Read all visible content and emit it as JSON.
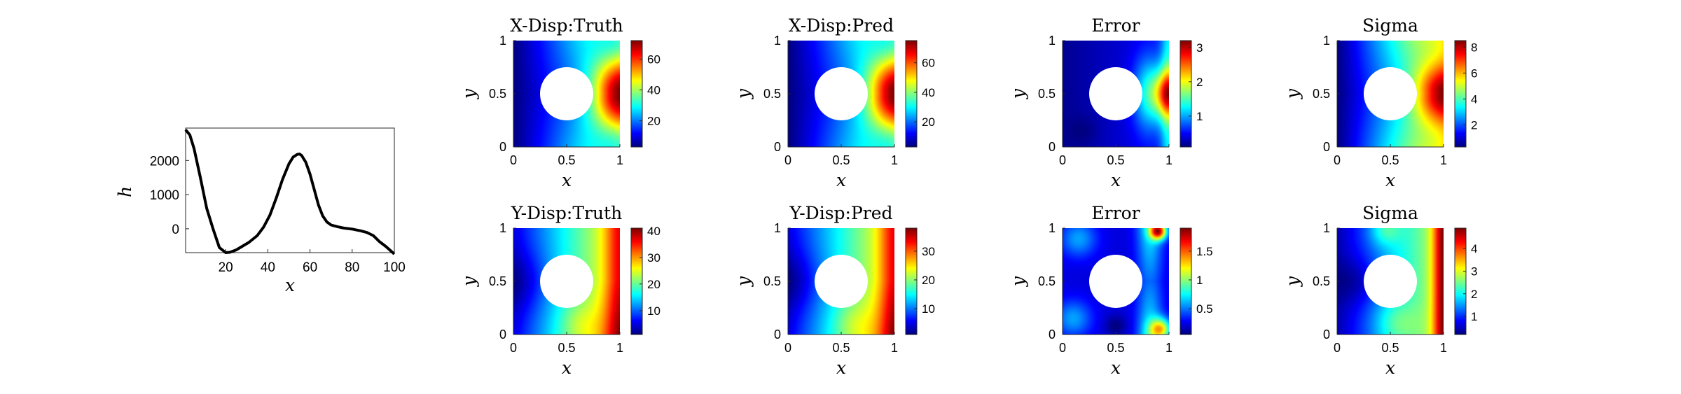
{
  "chart_data": [
    {
      "id": "h-profile",
      "type": "line",
      "title": "",
      "xlabel": "x",
      "ylabel": "h",
      "xlim": [
        1,
        100
      ],
      "ylim": [
        -700,
        2950
      ],
      "xticks": [
        "20",
        "40",
        "60",
        "80",
        "100"
      ],
      "yticks": [
        "0",
        "1000",
        "2000"
      ],
      "series": [
        {
          "x": [
            1,
            3,
            5,
            8,
            11,
            14,
            17,
            20,
            22,
            25,
            28,
            31,
            35,
            38,
            41,
            44,
            47,
            50,
            52,
            54,
            55,
            56,
            58,
            60,
            62,
            64,
            66,
            68,
            70,
            73,
            76,
            80,
            84,
            87,
            90,
            93,
            96,
            100
          ],
          "y": [
            2900,
            2750,
            2350,
            1500,
            600,
            0,
            -550,
            -700,
            -690,
            -620,
            -510,
            -400,
            -200,
            50,
            400,
            900,
            1450,
            1900,
            2100,
            2180,
            2190,
            2150,
            1950,
            1600,
            1150,
            700,
            380,
            200,
            110,
            60,
            20,
            -10,
            -60,
            -110,
            -200,
            -380,
            -520,
            -740
          ]
        }
      ]
    },
    {
      "id": "x-disp-truth",
      "type": "heatmap",
      "title": "X-Disp:Truth",
      "xlabel": "x",
      "ylabel": "y",
      "xticks": [
        "0",
        "0.5",
        "1"
      ],
      "yticks": [
        "0",
        "0.5",
        "1"
      ],
      "colorbar_ticks": [
        "20",
        "40",
        "60"
      ],
      "colorbar_range": [
        3,
        72
      ],
      "colormap": "jet",
      "pattern": "x-disp"
    },
    {
      "id": "x-disp-pred",
      "type": "heatmap",
      "title": "X-Disp:Pred",
      "xlabel": "x",
      "ylabel": "y",
      "xticks": [
        "0",
        "0.5",
        "1"
      ],
      "yticks": [
        "0",
        "0.5",
        "1"
      ],
      "colorbar_ticks": [
        "20",
        "40",
        "60"
      ],
      "colorbar_range": [
        3,
        75
      ],
      "colormap": "jet",
      "pattern": "x-disp"
    },
    {
      "id": "x-error",
      "type": "heatmap",
      "title": "Error",
      "xlabel": "x",
      "ylabel": "y",
      "xticks": [
        "0",
        "0.5",
        "1"
      ],
      "yticks": [
        "0",
        "0.5",
        "1"
      ],
      "colorbar_ticks": [
        "1",
        "2",
        "3"
      ],
      "colorbar_range": [
        0.1,
        3.2
      ],
      "colormap": "jet",
      "pattern": "x-error"
    },
    {
      "id": "x-sigma",
      "type": "heatmap",
      "title": "Sigma",
      "xlabel": "x",
      "ylabel": "y",
      "xticks": [
        "0",
        "0.5",
        "1"
      ],
      "yticks": [
        "0",
        "0.5",
        "1"
      ],
      "colorbar_ticks": [
        "2",
        "4",
        "6",
        "8"
      ],
      "colorbar_range": [
        0.3,
        8.5
      ],
      "colormap": "jet",
      "pattern": "x-sigma"
    },
    {
      "id": "y-disp-truth",
      "type": "heatmap",
      "title": "Y-Disp:Truth",
      "xlabel": "x",
      "ylabel": "y",
      "xticks": [
        "0",
        "0.5",
        "1"
      ],
      "yticks": [
        "0",
        "0.5",
        "1"
      ],
      "colorbar_ticks": [
        "10",
        "20",
        "30",
        "40"
      ],
      "colorbar_range": [
        1,
        41
      ],
      "colormap": "jet",
      "pattern": "y-disp"
    },
    {
      "id": "y-disp-pred",
      "type": "heatmap",
      "title": "Y-Disp:Pred",
      "xlabel": "x",
      "ylabel": "y",
      "xticks": [
        "0",
        "0.5",
        "1"
      ],
      "yticks": [
        "0",
        "0.5",
        "1"
      ],
      "colorbar_ticks": [
        "10",
        "20",
        "30"
      ],
      "colorbar_range": [
        1,
        38
      ],
      "colormap": "jet",
      "pattern": "y-disp"
    },
    {
      "id": "y-error",
      "type": "heatmap",
      "title": "Error",
      "xlabel": "x",
      "ylabel": "y",
      "xticks": [
        "0",
        "0.5",
        "1"
      ],
      "yticks": [
        "0",
        "0.5",
        "1"
      ],
      "colorbar_ticks": [
        "0.5",
        "1",
        "1.5"
      ],
      "colorbar_range": [
        0.05,
        1.9
      ],
      "colormap": "jet",
      "pattern": "y-error"
    },
    {
      "id": "y-sigma",
      "type": "heatmap",
      "title": "Sigma",
      "xlabel": "x",
      "ylabel": "y",
      "xticks": [
        "0",
        "0.5",
        "1"
      ],
      "yticks": [
        "0",
        "0.5",
        "1"
      ],
      "colorbar_ticks": [
        "1",
        "2",
        "3",
        "4"
      ],
      "colorbar_range": [
        0.2,
        4.9
      ],
      "colormap": "jet",
      "pattern": "y-sigma"
    }
  ]
}
